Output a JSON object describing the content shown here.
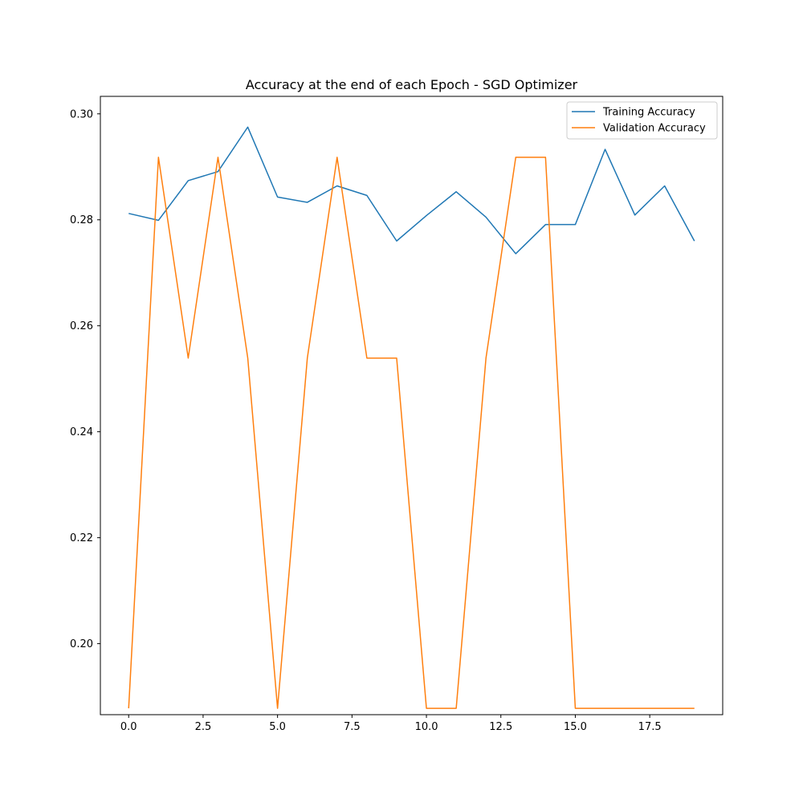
{
  "chart_data": {
    "type": "line",
    "title": "Accuracy at the end of each Epoch - SGD Optimizer",
    "xlabel": "",
    "ylabel": "",
    "x": [
      0,
      1,
      2,
      3,
      4,
      5,
      6,
      7,
      8,
      9,
      10,
      11,
      12,
      13,
      14,
      15,
      16,
      17,
      18,
      19
    ],
    "xlim": [
      -0.95,
      19.95
    ],
    "ylim": [
      0.1866,
      0.3033
    ],
    "xticks": [
      0.0,
      2.5,
      5.0,
      7.5,
      10.0,
      12.5,
      15.0,
      17.5
    ],
    "xtick_labels": [
      "0.0",
      "2.5",
      "5.0",
      "7.5",
      "10.0",
      "12.5",
      "15.0",
      "17.5"
    ],
    "yticks": [
      0.2,
      0.22,
      0.24,
      0.26,
      0.28,
      0.3
    ],
    "ytick_labels": [
      "0.20",
      "0.22",
      "0.24",
      "0.26",
      "0.28",
      "0.30"
    ],
    "grid": false,
    "legend_position": "top-right",
    "series": [
      {
        "name": "Training Accuracy",
        "color": "#1f77b4",
        "values": [
          0.2812,
          0.2799,
          0.2874,
          0.2891,
          0.2975,
          0.2843,
          0.2833,
          0.2864,
          0.2846,
          0.276,
          0.2808,
          0.2853,
          0.2805,
          0.2736,
          0.2791,
          0.2791,
          0.2933,
          0.2809,
          0.2864,
          0.276
        ]
      },
      {
        "name": "Validation Accuracy",
        "color": "#ff7f0e",
        "values": [
          0.1878,
          0.2918,
          0.2539,
          0.2918,
          0.2539,
          0.1878,
          0.2539,
          0.2918,
          0.2539,
          0.2539,
          0.1878,
          0.1878,
          0.2539,
          0.2918,
          0.2918,
          0.1878,
          0.1878,
          0.1878,
          0.1878,
          0.1878
        ]
      }
    ]
  }
}
